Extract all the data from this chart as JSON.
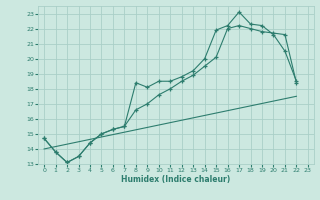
{
  "title": "",
  "xlabel": "Humidex (Indice chaleur)",
  "bg_color": "#cce8e0",
  "grid_color": "#aacfc8",
  "line_color": "#2d7d6e",
  "xlim": [
    -0.5,
    23.5
  ],
  "ylim": [
    13,
    23.5
  ],
  "xticks": [
    0,
    1,
    2,
    3,
    4,
    5,
    6,
    7,
    8,
    9,
    10,
    11,
    12,
    13,
    14,
    15,
    16,
    17,
    18,
    19,
    20,
    21,
    22,
    23
  ],
  "yticks": [
    13,
    14,
    15,
    16,
    17,
    18,
    19,
    20,
    21,
    22,
    23
  ],
  "line1_x": [
    0,
    1,
    2,
    3,
    4,
    5,
    6,
    7,
    8,
    9,
    10,
    11,
    12,
    13,
    14,
    15,
    16,
    17,
    18,
    19,
    20,
    21,
    22
  ],
  "line1_y": [
    14.7,
    13.8,
    13.1,
    13.5,
    14.4,
    15.0,
    15.3,
    15.5,
    18.4,
    18.1,
    18.5,
    18.5,
    18.8,
    19.2,
    20.0,
    21.9,
    22.2,
    23.1,
    22.3,
    22.2,
    21.6,
    20.5,
    18.5
  ],
  "line2_x": [
    0,
    1,
    2,
    3,
    4,
    5,
    6,
    7,
    8,
    9,
    10,
    11,
    12,
    13,
    14,
    15,
    16,
    17,
    18,
    19,
    20,
    21,
    22
  ],
  "line2_y": [
    14.7,
    13.8,
    13.1,
    13.5,
    14.4,
    15.0,
    15.3,
    15.5,
    16.6,
    17.0,
    17.6,
    18.0,
    18.5,
    18.9,
    19.5,
    20.1,
    22.0,
    22.2,
    22.0,
    21.8,
    21.7,
    21.6,
    18.4
  ],
  "line3_x": [
    0,
    22
  ],
  "line3_y": [
    14.0,
    17.5
  ]
}
